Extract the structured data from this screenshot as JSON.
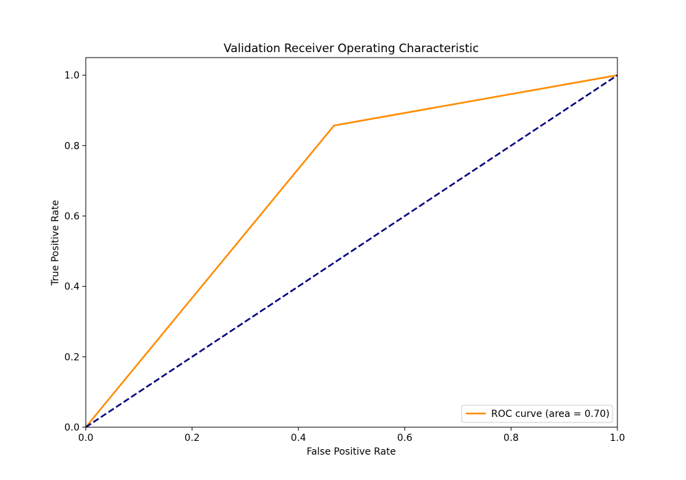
{
  "chart_data": {
    "type": "line",
    "title": "Validation Receiver Operating Characteristic",
    "xlabel": "False Positive Rate",
    "ylabel": "True Positive Rate",
    "xlim": [
      0.0,
      1.0
    ],
    "ylim": [
      0.0,
      1.05
    ],
    "x_ticks": [
      {
        "value": 0.0,
        "label": "0.0"
      },
      {
        "value": 0.2,
        "label": "0.2"
      },
      {
        "value": 0.4,
        "label": "0.4"
      },
      {
        "value": 0.6,
        "label": "0.6"
      },
      {
        "value": 0.8,
        "label": "0.8"
      },
      {
        "value": 1.0,
        "label": "1.0"
      }
    ],
    "y_ticks": [
      {
        "value": 0.0,
        "label": "0.0"
      },
      {
        "value": 0.2,
        "label": "0.2"
      },
      {
        "value": 0.4,
        "label": "0.4"
      },
      {
        "value": 0.6,
        "label": "0.6"
      },
      {
        "value": 0.8,
        "label": "0.8"
      },
      {
        "value": 1.0,
        "label": "1.0"
      }
    ],
    "grid": false,
    "legend_position": "lower-right",
    "series": [
      {
        "name": "ROC curve (area = 0.70)",
        "color": "#ff8c00",
        "style": "solid",
        "x": [
          0.0,
          0.467,
          1.0
        ],
        "y": [
          0.0,
          0.857,
          1.0
        ]
      },
      {
        "color": "#000080",
        "style": "dashed",
        "x": [
          0.0,
          1.0
        ],
        "y": [
          0.0,
          1.0
        ]
      }
    ]
  }
}
